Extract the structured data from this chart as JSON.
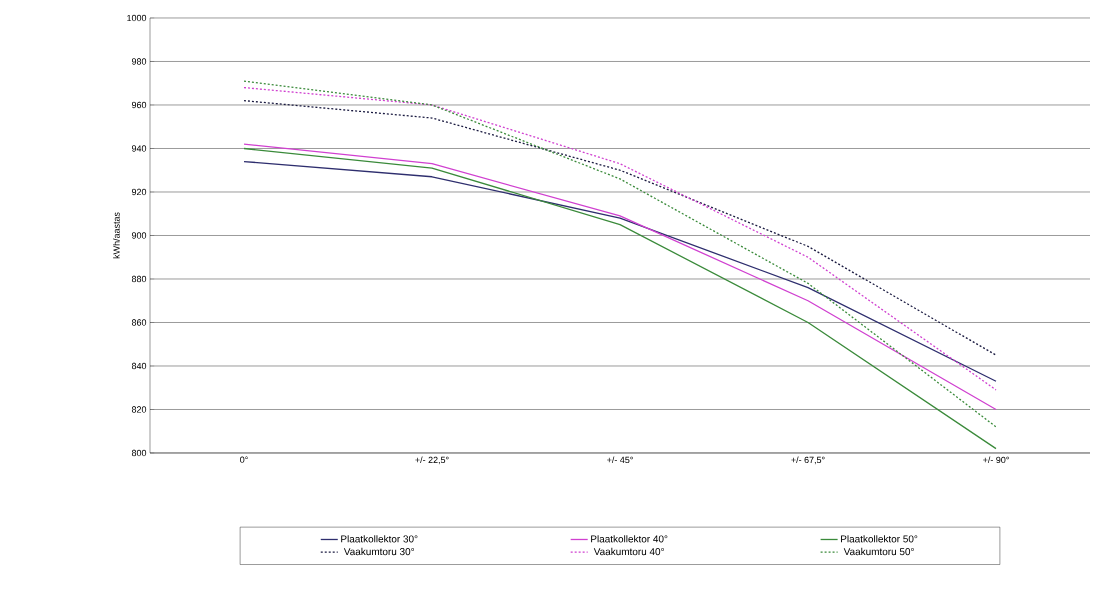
{
  "chart_data": {
    "type": "line",
    "ylabel": "kWh/aastas",
    "categories": [
      "0°",
      "+/- 22,5°",
      "+/- 45°",
      "+/- 67,5°",
      "+/- 90°"
    ],
    "series": [
      {
        "name": "Plaatkollektor 30°",
        "color": "#2e2e6e",
        "values": [
          934,
          927,
          908,
          876,
          833
        ],
        "line_style": "solid"
      },
      {
        "name": "Plaatkollektor 40°",
        "color": "#d040d0",
        "values": [
          942,
          933,
          909,
          870,
          820
        ],
        "line_style": "solid"
      },
      {
        "name": "Plaatkollektor 50°",
        "color": "#3a8a3a",
        "values": [
          940,
          931,
          905,
          860,
          802
        ],
        "line_style": "solid"
      },
      {
        "name": "Vaakumtoru 30°",
        "color": "#1a1a40",
        "values": [
          962,
          954,
          930,
          895,
          845
        ],
        "line_style": "dotted"
      },
      {
        "name": "Vaakumtoru 40°",
        "color": "#d040d0",
        "values": [
          968,
          960,
          933,
          890,
          829
        ],
        "line_style": "dotted"
      },
      {
        "name": "Vaakumtoru 50°",
        "color": "#3a8a3a",
        "values": [
          971,
          960,
          926,
          878,
          812
        ],
        "line_style": "dotted"
      }
    ],
    "ylim": [
      800,
      1000
    ],
    "yticks": [
      800,
      820,
      840,
      860,
      880,
      900,
      920,
      940,
      960,
      980,
      1000
    ],
    "grid": "y",
    "legend": "bottom",
    "marker": "none"
  }
}
